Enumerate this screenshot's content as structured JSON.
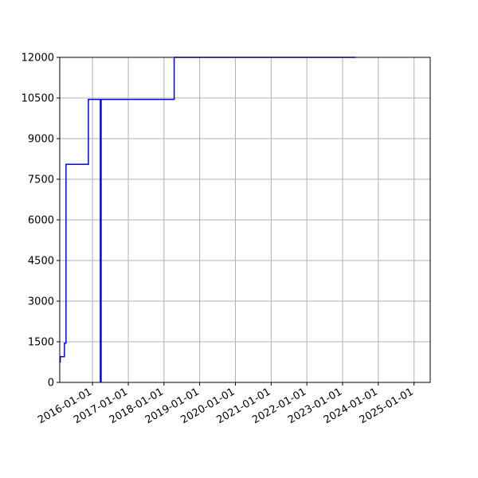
{
  "chart_data": {
    "type": "line",
    "title": "",
    "xlabel": "",
    "ylabel": "",
    "grid": true,
    "xlim": [
      "2015-01-31",
      "2025-06-15"
    ],
    "ylim": [
      0,
      12000
    ],
    "x_ticks": [
      "2016-01-01",
      "2017-01-01",
      "2018-01-01",
      "2019-01-01",
      "2020-01-01",
      "2021-01-01",
      "2022-01-01",
      "2023-01-01",
      "2024-01-01",
      "2025-01-01"
    ],
    "y_ticks": [
      0,
      1500,
      3000,
      4500,
      6000,
      7500,
      9000,
      10500,
      12000
    ],
    "y_tick_labels": [
      "0",
      "1500",
      "3000",
      "4500",
      "6000",
      "7500",
      "9000",
      "10500",
      "12000"
    ],
    "colors": {
      "line": "#0000ff",
      "grid": "#b0b0b0",
      "axes": "#000000"
    },
    "series": [
      {
        "step": "post",
        "points": [
          {
            "x": "2015-02-01",
            "y": 750
          },
          {
            "x": "2015-02-05",
            "y": 950
          },
          {
            "x": "2015-03-15",
            "y": 950
          },
          {
            "x": "2015-03-20",
            "y": 1450
          },
          {
            "x": "2015-04-01",
            "y": 1450
          },
          {
            "x": "2015-04-05",
            "y": 8050
          },
          {
            "x": "2015-11-15",
            "y": 8050
          },
          {
            "x": "2015-11-20",
            "y": 10450
          },
          {
            "x": "2018-04-10",
            "y": 10450
          },
          {
            "x": "2018-04-15",
            "y": 12000
          },
          {
            "x": "2023-05-15",
            "y": 12000
          }
        ]
      },
      {
        "step": "none",
        "points": [
          {
            "x": "2016-03-25",
            "y": 0
          },
          {
            "x": "2016-03-25",
            "y": 10450
          }
        ]
      }
    ]
  }
}
